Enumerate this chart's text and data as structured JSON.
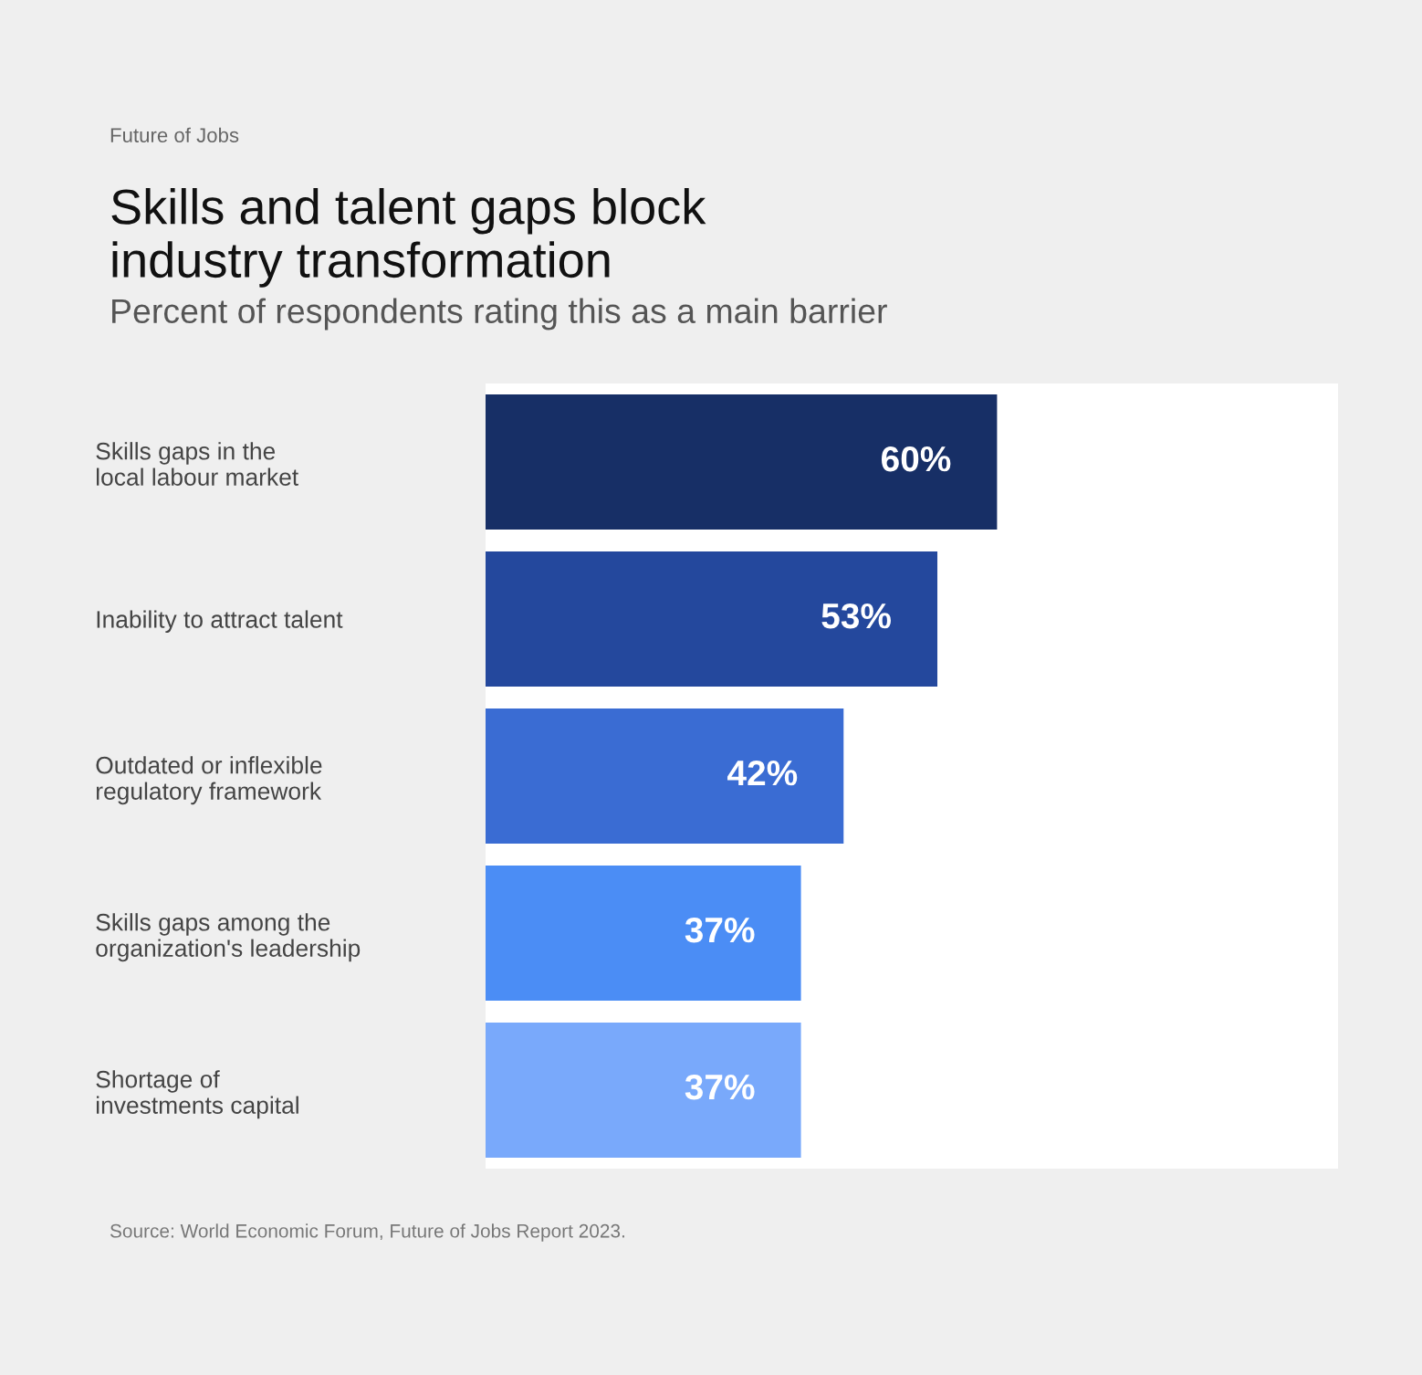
{
  "chart_data": {
    "type": "bar",
    "orientation": "horizontal",
    "subtitle": "Future of Jobs",
    "title": "Skills and talent gaps block\nindustry transformation",
    "xlabel": "Percent of respondents rating this as a main barrier",
    "categories": [
      "Skills gaps in the\nlocal labour market",
      "Inability to attract talent",
      "Outdated or inflexible\nregulatory framework",
      "Skills gaps among the\norganization's leadership",
      "Shortage of\ninvestments capital"
    ],
    "values": [
      60,
      53,
      42,
      37,
      37
    ],
    "value_labels": [
      "60%",
      "53%",
      "42%",
      "37%",
      "37%"
    ],
    "colors": [
      "#172f66",
      "#24489d",
      "#3a6cd3",
      "#4b8df5",
      "#79a9fb"
    ],
    "xlim": [
      0,
      100
    ],
    "tick_labels": "y",
    "grid": false,
    "legend": false,
    "annotations": [
      "Source: World Economic Forum, Future of Jobs Report 2023."
    ]
  }
}
